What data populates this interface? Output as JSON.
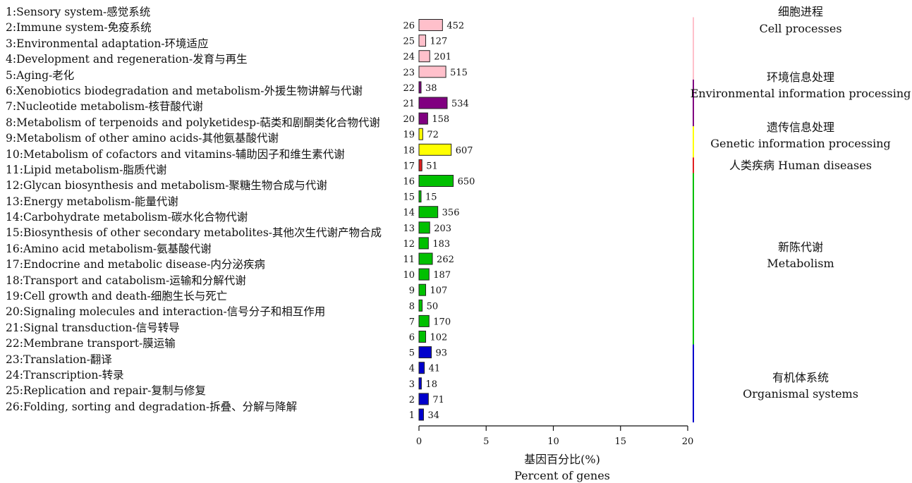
{
  "chart_data": {
    "type": "bar",
    "orientation": "horizontal",
    "categories": [
      "1",
      "2",
      "3",
      "4",
      "5",
      "6",
      "7",
      "8",
      "9",
      "10",
      "11",
      "12",
      "13",
      "14",
      "15",
      "16",
      "17",
      "18",
      "19",
      "20",
      "21",
      "22",
      "23",
      "24",
      "25",
      "26"
    ],
    "values": [
      0.34,
      0.7,
      0.18,
      0.4,
      0.92,
      0.5,
      0.75,
      0.24,
      0.5,
      0.75,
      1.0,
      0.7,
      0.8,
      1.4,
      0.06,
      2.55,
      0.22,
      2.4,
      0.28,
      0.65,
      2.1,
      0.15,
      2.0,
      0.8,
      0.5,
      1.75
    ],
    "data_labels": [
      "34",
      "71",
      "18",
      "41",
      "93",
      "102",
      "170",
      "50",
      "107",
      "187",
      "262",
      "183",
      "203",
      "356",
      "15",
      "650",
      "51",
      "607",
      "72",
      "158",
      "534",
      "38",
      "515",
      "201",
      "127",
      "452"
    ],
    "legend": [
      "1:Sensory system-感觉系统",
      "2:Immune system-免疫系统",
      "3:Environmental adaptation-环境适应",
      "4:Development and regeneration-发育与再生",
      "5:Aging-老化",
      "6:Xenobiotics biodegradation and metabolism-外援生物讲解与代谢",
      "7:Nucleotide metabolism-核苷酸代谢",
      "8:Metabolism of terpenoids and polyketidesp-萜类和剧酮类化合物代谢",
      "9:Metabolism of other amino acids-其他氨基酸代谢",
      "10:Metabolism of cofactors and vitamins-辅助因子和维生素代谢",
      "11:Lipid metabolism-脂质代谢",
      "12:Glycan biosynthesis and metabolism-聚糖生物合成与代谢",
      "13:Energy metabolism-能量代谢",
      "14:Carbohydrate metabolism-碳水化合物代谢",
      "15:Biosynthesis of other secondary metabolites-其他次生代谢产物合成",
      "16:Amino acid metabolism-氨基酸代谢",
      "17:Endocrine and metabolic disease-内分泌疾病",
      "18:Transport and catabolism-运输和分解代谢",
      "19:Cell growth and death-细胞生长与死亡",
      "20:Signaling molecules and interaction-信号分子和相互作用",
      "21:Signal transduction-信号转导",
      "22:Membrane transport-膜运输",
      "23:Translation-翻译",
      "24:Transcription-转录",
      "25:Replication and repair-复制与修复",
      "26:Folding, sorting and degradation-拆叠、分解与降解"
    ],
    "groups": [
      {
        "label_cn": "细胞进程",
        "label_en": "Cell processes",
        "color": "#FFC0CB",
        "from": 23,
        "to": 26
      },
      {
        "label_cn": "环境信息处理",
        "label_en": "Environmental information processing",
        "color": "#800080",
        "from": 20,
        "to": 22
      },
      {
        "label_cn": "遗传信息处理",
        "label_en": "Genetic information processing",
        "color": "#FFFF00",
        "from": 18,
        "to": 19
      },
      {
        "label_cn": "人类疾病  Human diseases",
        "label_en": "",
        "color": "#E02020",
        "from": 17,
        "to": 17
      },
      {
        "label_cn": "新陈代谢",
        "label_en": "Metabolism",
        "color": "#00C000",
        "from": 6,
        "to": 16
      },
      {
        "label_cn": "有机体系统",
        "label_en": "Organismal systems",
        "color": "#0000CC",
        "from": 1,
        "to": 5
      }
    ],
    "x_ticks": [
      "0",
      "5",
      "10",
      "15",
      "20"
    ],
    "xlim": [
      0,
      20
    ],
    "xlabel_cn": "基因百分比(%)",
    "xlabel_en": "Percent of genes",
    "grid": false
  }
}
